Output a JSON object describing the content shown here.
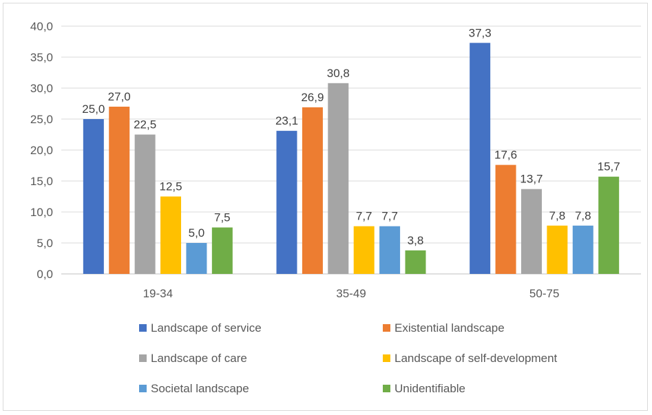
{
  "chart_data": {
    "type": "bar",
    "categories": [
      "19-34",
      "35-49",
      "50-75"
    ],
    "ylim": [
      0,
      40
    ],
    "yticks": [
      "0,0",
      "5,0",
      "10,0",
      "15,0",
      "20,0",
      "25,0",
      "30,0",
      "35,0",
      "40,0"
    ],
    "ytick_values": [
      0,
      5,
      10,
      15,
      20,
      25,
      30,
      35,
      40
    ],
    "grid": true,
    "legend_position": "bottom",
    "series": [
      {
        "name": "Landscape of service",
        "color": "#4472c4",
        "values": [
          25.0,
          23.1,
          37.3
        ],
        "labels": [
          "25,0",
          "23,1",
          "37,3"
        ]
      },
      {
        "name": "Existential landscape",
        "color": "#ed7d31",
        "values": [
          27.0,
          26.9,
          17.6
        ],
        "labels": [
          "27,0",
          "26,9",
          "17,6"
        ]
      },
      {
        "name": "Landscape of care",
        "color": "#a5a5a5",
        "values": [
          22.5,
          30.8,
          13.7
        ],
        "labels": [
          "22,5",
          "30,8",
          "13,7"
        ]
      },
      {
        "name": "Landscape of self-development",
        "color": "#ffc000",
        "values": [
          12.5,
          7.7,
          7.8
        ],
        "labels": [
          "12,5",
          "7,7",
          "7,8"
        ]
      },
      {
        "name": "Societal landscape",
        "color": "#5b9bd5",
        "values": [
          5.0,
          7.7,
          7.8
        ],
        "labels": [
          "5,0",
          "7,7",
          "7,8"
        ]
      },
      {
        "name": "Unidentifiable",
        "color": "#70ad47",
        "values": [
          7.5,
          3.8,
          15.7
        ],
        "labels": [
          "7,5",
          "3,8",
          "15,7"
        ]
      }
    ]
  }
}
